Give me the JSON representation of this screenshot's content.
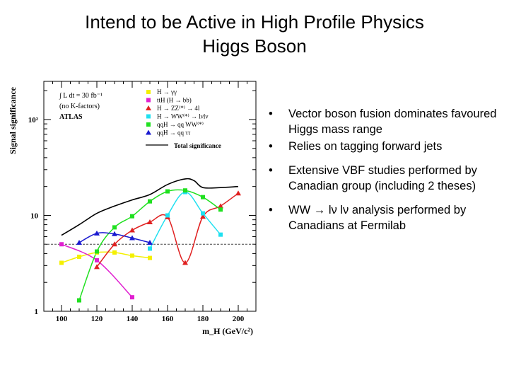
{
  "slide": {
    "title_line1": "Intend to be Active in High Profile Physics",
    "title_line2": "Higgs Boson"
  },
  "bullets": [
    "Vector boson fusion dominates favoured Higgs mass range",
    "Relies on tagging forward jets",
    "Extensive VBF studies performed by Canadian group (including 2 theses)",
    "WW → lν lν analysis performed by Canadians at Fermilab"
  ],
  "bullet_char": "•",
  "chart_data": {
    "type": "line",
    "xlabel": "m_H (GeV/c²)",
    "ylabel": "Signal significance",
    "x_ticks": [
      "100",
      "120",
      "140",
      "160",
      "180",
      "200"
    ],
    "y_ticks": [
      "1",
      "10",
      "10²"
    ],
    "xlim": [
      90,
      210
    ],
    "ylim": [
      1,
      250
    ],
    "log_y": true,
    "reference_line": 5,
    "info_text": [
      "∫ L dt = 30 fb⁻¹",
      "(no K-factors)",
      "ATLAS"
    ],
    "series": [
      {
        "name": "H → γγ",
        "color": "#f4f000",
        "marker": "square",
        "x": [
          100,
          110,
          120,
          130,
          140,
          150
        ],
        "y": [
          3.2,
          3.7,
          4.1,
          4.1,
          3.8,
          3.6
        ]
      },
      {
        "name": "ttH (H → bb)",
        "color": "#e020d0",
        "marker": "square",
        "x": [
          100,
          120,
          140
        ],
        "y": [
          5.0,
          3.4,
          1.4
        ]
      },
      {
        "name": "H → ZZ⁽*⁾ → 4l",
        "color": "#e02020",
        "marker": "triangle",
        "x": [
          120,
          130,
          140,
          150,
          160,
          170,
          180,
          190,
          200
        ],
        "y": [
          2.9,
          5.0,
          7.0,
          8.5,
          9.6,
          3.2,
          9.7,
          12.5,
          17.0
        ]
      },
      {
        "name": "H → WW⁽*⁾ → lνlν",
        "color": "#20e0f0",
        "marker": "square",
        "x": [
          150,
          160,
          170,
          180,
          190
        ],
        "y": [
          4.5,
          10.0,
          17.5,
          10.5,
          6.3
        ]
      },
      {
        "name": "qqH → qq WW⁽*⁾",
        "color": "#20e020",
        "marker": "square",
        "x": [
          110,
          120,
          130,
          140,
          150,
          160,
          170,
          180,
          190
        ],
        "y": [
          1.3,
          4.2,
          7.5,
          9.8,
          14.0,
          17.8,
          18.2,
          15.5,
          11.5
        ]
      },
      {
        "name": "qqH → qq ττ",
        "color": "#1a1ad0",
        "marker": "triangle",
        "x": [
          110,
          120,
          130,
          140,
          150
        ],
        "y": [
          5.2,
          6.5,
          6.4,
          5.8,
          5.2
        ]
      },
      {
        "name": "Total significance",
        "color": "#000000",
        "marker": "none",
        "x": [
          100,
          110,
          120,
          130,
          140,
          150,
          160,
          170,
          175,
          180,
          190,
          200
        ],
        "y": [
          6.2,
          8.0,
          10.5,
          12.5,
          14.5,
          16.5,
          21.0,
          24.0,
          23.0,
          19.5,
          19.5,
          20.0
        ]
      }
    ]
  }
}
